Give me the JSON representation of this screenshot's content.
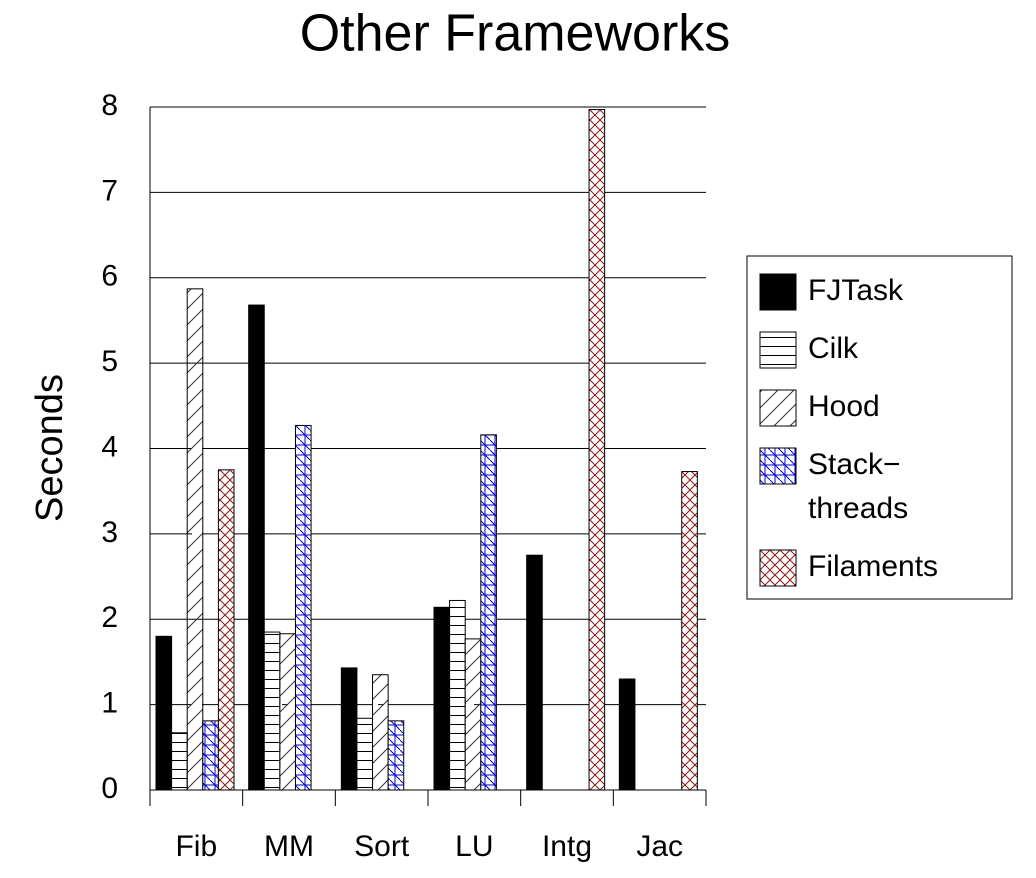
{
  "chart_data": {
    "type": "bar",
    "title": "Other Frameworks",
    "y_label": "Seconds",
    "categories": [
      "Fib",
      "MM",
      "Sort",
      "LU",
      "Intg",
      "Jac"
    ],
    "series": [
      {
        "name": "FJTask",
        "color": "#000000",
        "pattern": "solid",
        "values": [
          1.8,
          5.68,
          1.43,
          2.14,
          2.75,
          1.3
        ]
      },
      {
        "name": "Cilk",
        "color": "#000000",
        "pattern": "horizontal",
        "values": [
          0.67,
          1.85,
          0.84,
          2.22,
          null,
          null
        ]
      },
      {
        "name": "Hood",
        "color": "#333333",
        "pattern": "diagonal",
        "values": [
          5.87,
          1.83,
          1.35,
          1.77,
          null,
          null
        ]
      },
      {
        "name": "Stack−\nthreads",
        "color": "#0000cc",
        "pattern": "grid-diagonal",
        "values": [
          0.81,
          4.27,
          0.81,
          4.16,
          null,
          null
        ]
      },
      {
        "name": "Filaments",
        "color": "#8b1a1a",
        "pattern": "crosshatch",
        "values": [
          3.75,
          null,
          null,
          null,
          7.97,
          3.73
        ]
      }
    ],
    "ylim": [
      0,
      8
    ],
    "yticks": [
      0,
      1,
      2,
      3,
      4,
      5,
      6,
      7,
      8
    ],
    "grid": true,
    "legend": "right"
  }
}
